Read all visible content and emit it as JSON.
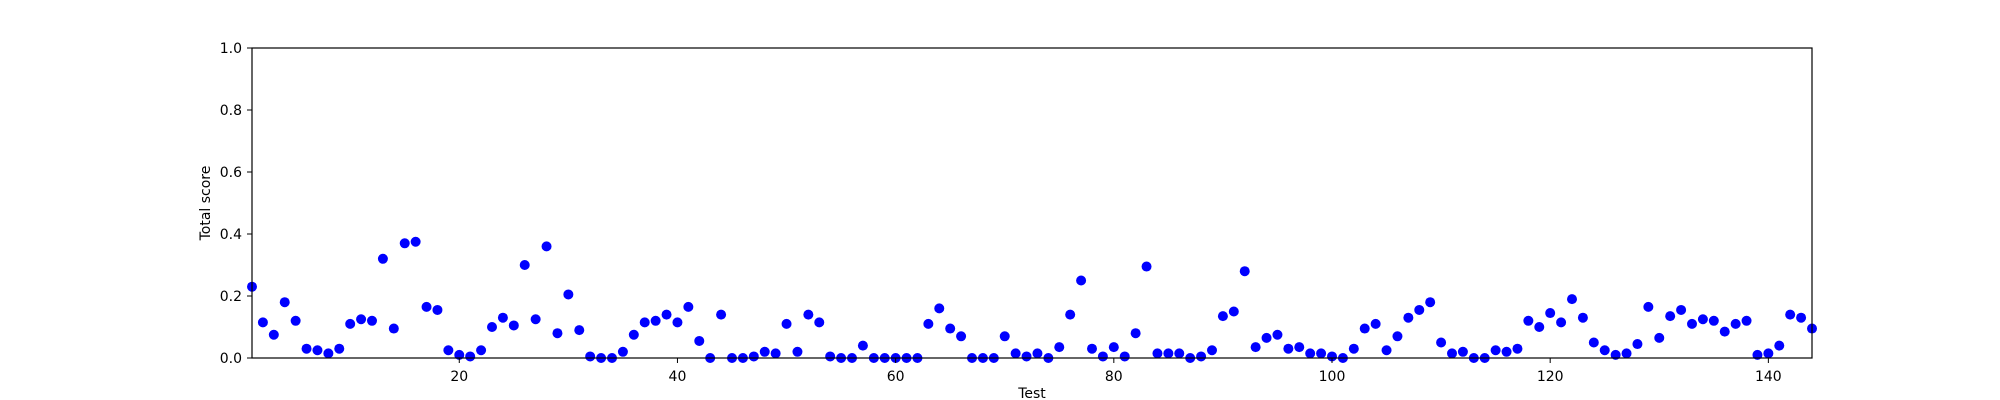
{
  "chart_data": {
    "type": "scatter",
    "title": "",
    "xlabel": "Test",
    "ylabel": "Total score",
    "xlim": [
      1,
      144
    ],
    "ylim": [
      0,
      1
    ],
    "xticks": [
      20,
      40,
      60,
      80,
      100,
      120,
      140
    ],
    "yticks": [
      0.0,
      0.2,
      0.4,
      0.6,
      0.8,
      1.0
    ],
    "ytick_labels": [
      "0.0",
      "0.2",
      "0.4",
      "0.6",
      "0.8",
      "1.0"
    ],
    "grid": false,
    "marker_color": "#0000ff",
    "x": [
      1,
      2,
      3,
      4,
      5,
      6,
      7,
      8,
      9,
      10,
      11,
      12,
      13,
      14,
      15,
      16,
      17,
      18,
      19,
      20,
      21,
      22,
      23,
      24,
      25,
      26,
      27,
      28,
      29,
      30,
      31,
      32,
      33,
      34,
      35,
      36,
      37,
      38,
      39,
      40,
      41,
      42,
      43,
      44,
      45,
      46,
      47,
      48,
      49,
      50,
      51,
      52,
      53,
      54,
      55,
      56,
      57,
      58,
      59,
      60,
      61,
      62,
      63,
      64,
      65,
      66,
      67,
      68,
      69,
      70,
      71,
      72,
      73,
      74,
      75,
      76,
      77,
      78,
      79,
      80,
      81,
      82,
      83,
      84,
      85,
      86,
      87,
      88,
      89,
      90,
      91,
      92,
      93,
      94,
      95,
      96,
      97,
      98,
      99,
      100,
      101,
      102,
      103,
      104,
      105,
      106,
      107,
      108,
      109,
      110,
      111,
      112,
      113,
      114,
      115,
      116,
      117,
      118,
      119,
      120,
      121,
      122,
      123,
      124,
      125,
      126,
      127,
      128,
      129,
      130,
      131,
      132,
      133,
      134,
      135,
      136,
      137,
      138,
      139,
      140,
      141,
      142,
      143,
      144
    ],
    "y": [
      0.23,
      0.115,
      0.075,
      0.18,
      0.12,
      0.03,
      0.025,
      0.015,
      0.03,
      0.11,
      0.125,
      0.12,
      0.32,
      0.095,
      0.37,
      0.375,
      0.165,
      0.155,
      0.025,
      0.01,
      0.005,
      0.025,
      0.1,
      0.13,
      0.105,
      0.3,
      0.125,
      0.36,
      0.08,
      0.205,
      0.09,
      0.005,
      0.0,
      0.0,
      0.02,
      0.075,
      0.115,
      0.12,
      0.14,
      0.115,
      0.165,
      0.055,
      0.0,
      0.14,
      0.0,
      0.0,
      0.005,
      0.02,
      0.015,
      0.11,
      0.02,
      0.14,
      0.115,
      0.005,
      0.0,
      0.0,
      0.04,
      0.0,
      0.0,
      0.0,
      0.0,
      0.0,
      0.11,
      0.16,
      0.095,
      0.07,
      0.0,
      0.0,
      0.0,
      0.07,
      0.015,
      0.005,
      0.015,
      0.0,
      0.035,
      0.14,
      0.25,
      0.03,
      0.005,
      0.035,
      0.005,
      0.08,
      0.295,
      0.015,
      0.015,
      0.015,
      0.0,
      0.005,
      0.025,
      0.135,
      0.15,
      0.28,
      0.035,
      0.065,
      0.075,
      0.03,
      0.035,
      0.015,
      0.015,
      0.005,
      0.0,
      0.03,
      0.095,
      0.11,
      0.025,
      0.07,
      0.13,
      0.155,
      0.18,
      0.05,
      0.015,
      0.02,
      0.0,
      0.0,
      0.025,
      0.02,
      0.03,
      0.12,
      0.1,
      0.145,
      0.115,
      0.19,
      0.13,
      0.05,
      0.025,
      0.01,
      0.015,
      0.045,
      0.165,
      0.065,
      0.135,
      0.155,
      0.11,
      0.125,
      0.12,
      0.085,
      0.11,
      0.12,
      0.01,
      0.015,
      0.04,
      0.14,
      0.13,
      0.095
    ]
  }
}
